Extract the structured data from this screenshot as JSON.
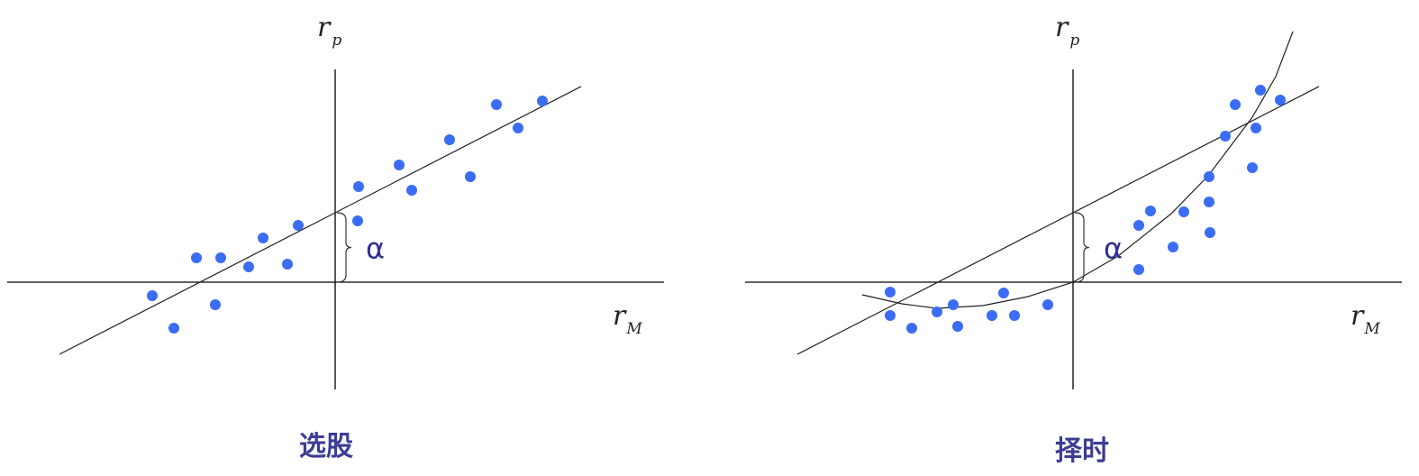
{
  "colors": {
    "points": "#3a6cf4",
    "titles": "#3c3c96",
    "alpha": "#2f2f8f",
    "lines": "#222222"
  },
  "chart_data": [
    {
      "type": "scatter",
      "title": "选股",
      "xlabel": "r",
      "xlabel_sub": "M",
      "ylabel": "r",
      "ylabel_sub": "p",
      "annotation": "α",
      "xlim": [
        -36.4,
        36.5
      ],
      "ylim": [
        -11.9,
        23.6
      ],
      "grid": false,
      "points": [
        [
          -20.3,
          -1.5
        ],
        [
          -17.9,
          -5.1
        ],
        [
          -15.4,
          2.7
        ],
        [
          -12.7,
          2.7
        ],
        [
          -13.3,
          -2.5
        ],
        [
          -9.6,
          1.7
        ],
        [
          -8,
          4.9
        ],
        [
          -5.3,
          2
        ],
        [
          -4.1,
          6.3
        ],
        [
          2.6,
          10.6
        ],
        [
          2.5,
          6.8
        ],
        [
          7.1,
          13
        ],
        [
          8.5,
          10.2
        ],
        [
          12.7,
          15.8
        ],
        [
          15,
          11.7
        ],
        [
          17.9,
          19.7
        ],
        [
          20.3,
          17.1
        ],
        [
          23,
          20.1
        ]
      ],
      "fit_line": {
        "intercept": 7.7,
        "slope": 0.513,
        "x_range": [
          -30.6,
          27.3
        ]
      }
    },
    {
      "type": "scatter",
      "title": "择时",
      "xlabel": "r",
      "xlabel_sub": "M",
      "ylabel": "r",
      "ylabel_sub": "p",
      "annotation": "α",
      "xlim": [
        -36.4,
        36.5
      ],
      "ylim": [
        -11.9,
        23.6
      ],
      "grid": false,
      "points": [
        [
          -20.3,
          -1.1
        ],
        [
          -20.3,
          -3.7
        ],
        [
          -17.9,
          -5.1
        ],
        [
          -15.1,
          -3.3
        ],
        [
          -13.3,
          -2.5
        ],
        [
          -12.8,
          -4.9
        ],
        [
          -9,
          -3.7
        ],
        [
          -7.7,
          -1.2
        ],
        [
          -6.5,
          -3.7
        ],
        [
          -2.8,
          -2.5
        ],
        [
          7.3,
          6.3
        ],
        [
          7.3,
          1.4
        ],
        [
          8.6,
          7.9
        ],
        [
          11.1,
          3.9
        ],
        [
          12.3,
          7.8
        ],
        [
          15.1,
          11.7
        ],
        [
          15.1,
          8.9
        ],
        [
          15.2,
          5.5
        ],
        [
          16.9,
          16.2
        ],
        [
          18,
          19.7
        ],
        [
          19.9,
          12.7
        ],
        [
          20.3,
          17.1
        ],
        [
          20.8,
          21.3
        ],
        [
          23,
          20.2
        ]
      ],
      "fit_line": {
        "intercept": 7.7,
        "slope": 0.513,
        "x_range": [
          -30.6,
          27.3
        ]
      },
      "fit_curve": [
        [
          -23.4,
          -1.4
        ],
        [
          -19,
          -2.4
        ],
        [
          -15.1,
          -2.9
        ],
        [
          -10,
          -2.6
        ],
        [
          -5,
          -1.6
        ],
        [
          0,
          0
        ],
        [
          5,
          2.9
        ],
        [
          10.9,
          7.6
        ],
        [
          15,
          11.8
        ],
        [
          19.9,
          18.3
        ],
        [
          22.5,
          22.8
        ],
        [
          24.4,
          27.8
        ]
      ]
    }
  ]
}
